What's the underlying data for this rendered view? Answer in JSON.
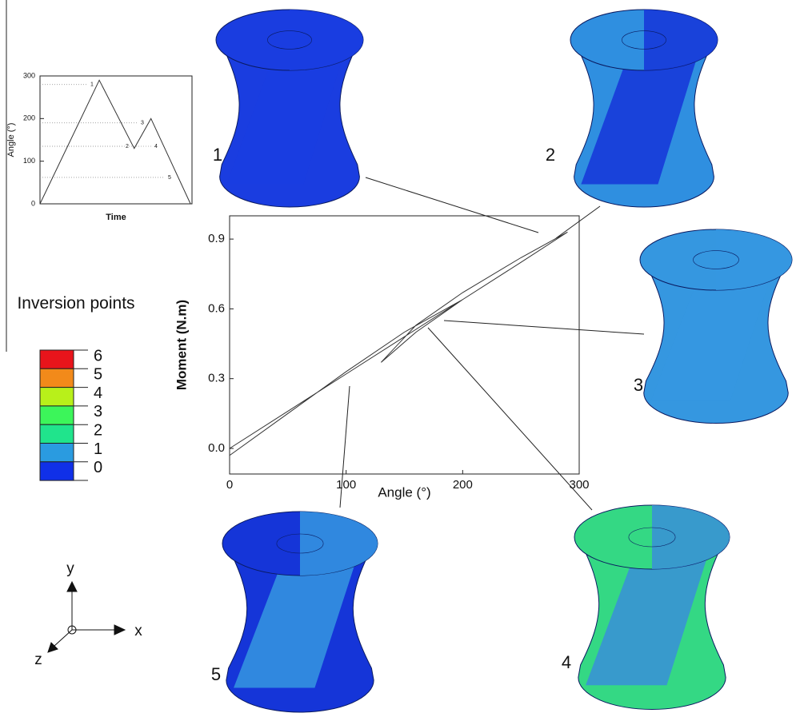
{
  "chart_data": [
    {
      "type": "line",
      "x_label": "Time",
      "y_label": "Angle (°)",
      "xlim": [
        0,
        10
      ],
      "ylim": [
        0,
        300
      ],
      "yticks": [
        0,
        100,
        200,
        300
      ],
      "series": [
        {
          "color": "#333333",
          "x": [
            0,
            3.9,
            6.2,
            7.3,
            9.9
          ],
          "values": [
            0,
            290,
            130,
            200,
            0
          ]
        }
      ],
      "reference_lines": [
        {
          "label": "1",
          "value": 280
        },
        {
          "label": "3",
          "value": 190
        },
        {
          "label": "2",
          "value": 135
        },
        {
          "label": "4",
          "value": 135
        },
        {
          "label": "5",
          "value": 62
        }
      ]
    },
    {
      "type": "line",
      "x_label": "Angle (°)",
      "y_label": "Moment (N.m)",
      "xlim": [
        0,
        300
      ],
      "ylim": [
        -0.11,
        1.0
      ],
      "xticks": [
        0,
        100,
        200,
        300
      ],
      "yticks": [
        {
          "value": 0,
          "label": "0.0"
        },
        0.3,
        0.6,
        0.9
      ],
      "series": [
        {
          "color": "#333333",
          "x": [
            0,
            50,
            100,
            150,
            200,
            250,
            290,
            250,
            200,
            160,
            130,
            160,
            200,
            150,
            100,
            50,
            0
          ],
          "values": [
            0,
            0.16,
            0.32,
            0.48,
            0.64,
            0.8,
            0.93,
            0.82,
            0.67,
            0.53,
            0.37,
            0.5,
            0.64,
            0.5,
            0.33,
            0.15,
            -0.03
          ]
        }
      ]
    }
  ],
  "legend": {
    "title": "Inversion points",
    "levels": [
      {
        "label": "6",
        "color": "#e8141b"
      },
      {
        "label": "5",
        "color": "#f28a1a"
      },
      {
        "label": "4",
        "color": "#b8f01a"
      },
      {
        "label": "3",
        "color": "#3cf55a"
      },
      {
        "label": "2",
        "color": "#20e48c"
      },
      {
        "label": "1",
        "color": "#2a9be0"
      },
      {
        "label": "0",
        "color": "#1030e8"
      }
    ]
  },
  "specimens": [
    "1",
    "2",
    "3",
    "4",
    "5"
  ],
  "triad": {
    "x": "x",
    "y": "y",
    "z": "z"
  }
}
